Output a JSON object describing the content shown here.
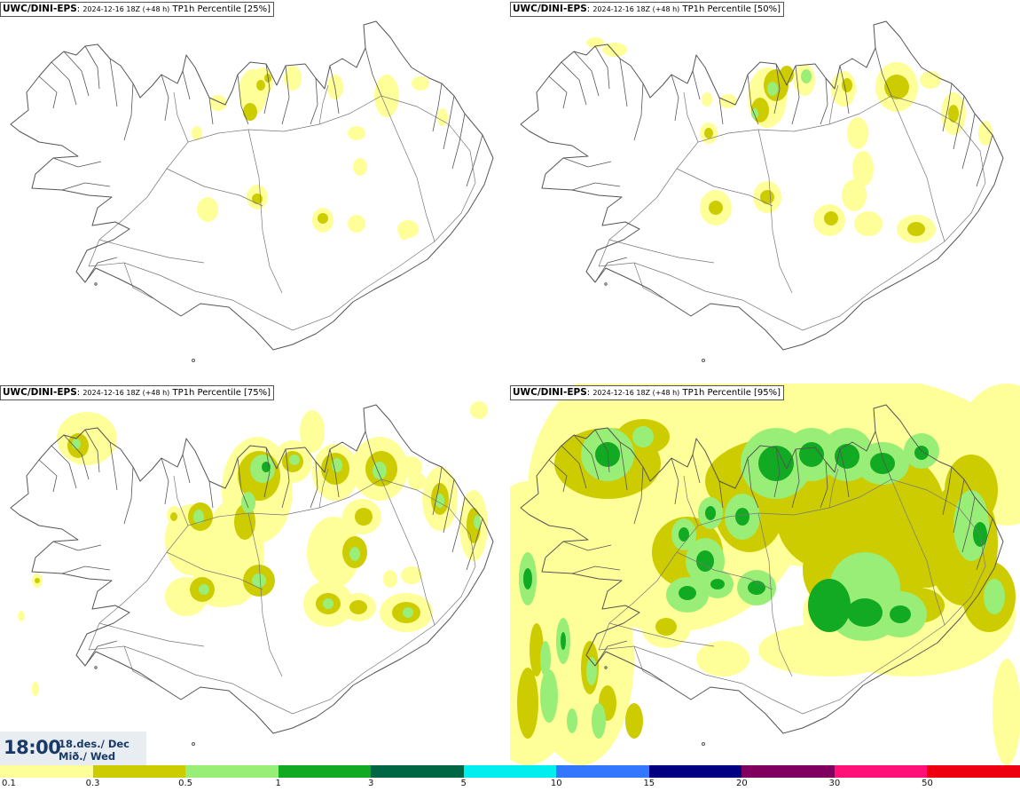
{
  "panels": [
    {
      "source": "UWC/DINI-EPS",
      "run": "2024-12-16 18Z (+48 h)",
      "variable": "TP1h Percentile [25%]",
      "percentile": 25
    },
    {
      "source": "UWC/DINI-EPS",
      "run": "2024-12-16 18Z (+48 h)",
      "variable": "TP1h Percentile [50%]",
      "percentile": 50
    },
    {
      "source": "UWC/DINI-EPS",
      "run": "2024-12-16 18Z (+48 h)",
      "variable": "TP1h Percentile [75%]",
      "percentile": 75
    },
    {
      "source": "UWC/DINI-EPS",
      "run": "2024-12-16 18Z (+48 h)",
      "variable": "TP1h Percentile [95%]",
      "percentile": 95
    }
  ],
  "valid_time": {
    "clock": "18:00",
    "date_line": "18.des./ Dec",
    "day_line": "Mið./ Wed"
  },
  "colorbar": {
    "thresholds": [
      "0.1",
      "0.3",
      "0.5",
      "1",
      "3",
      "5",
      "10",
      "15",
      "20",
      "30",
      "50"
    ],
    "colors": [
      "#ffff99",
      "#cccc00",
      "#99ee77",
      "#11aa22",
      "#006644",
      "#00eeee",
      "#3377ff",
      "#000080",
      "#800060",
      "#ff1177",
      "#ee0011"
    ]
  }
}
